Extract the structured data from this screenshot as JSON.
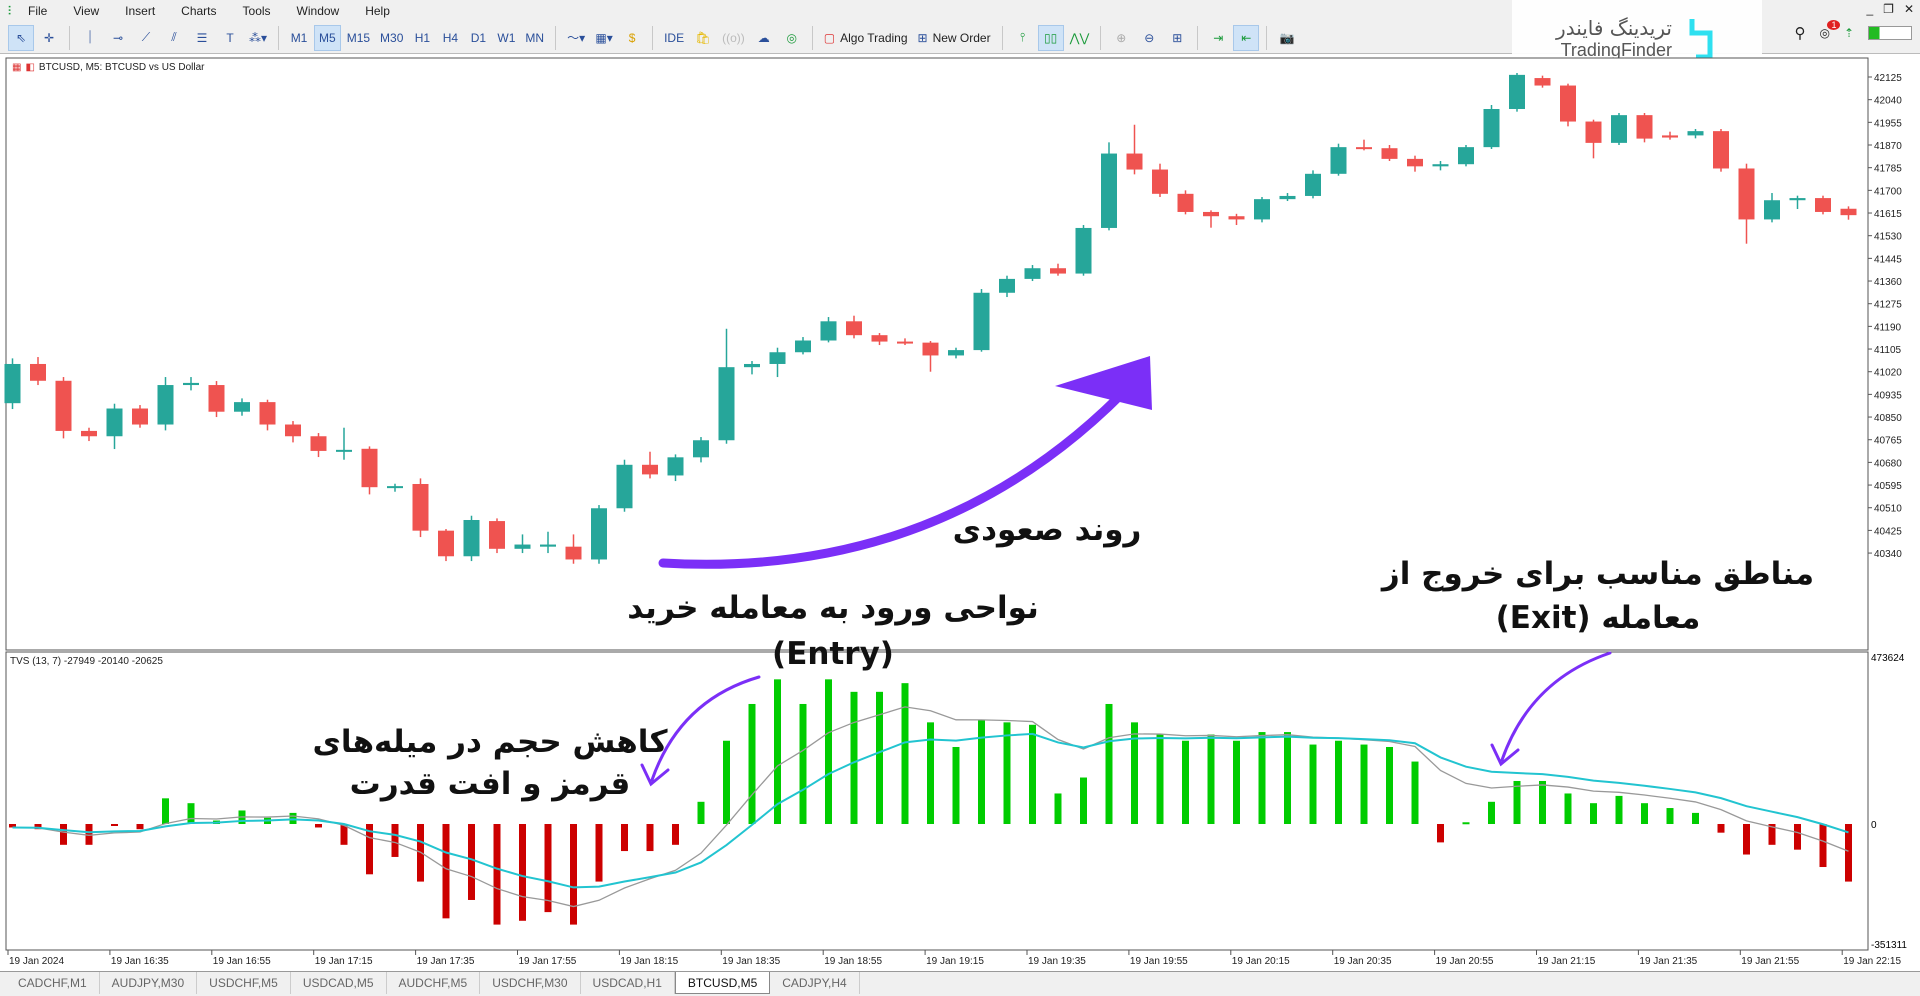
{
  "menu": [
    "File",
    "View",
    "Insert",
    "Charts",
    "Tools",
    "Window",
    "Help"
  ],
  "toolbar": {
    "timeframes": [
      "M1",
      "M5",
      "M15",
      "M30",
      "H1",
      "H4",
      "D1",
      "W1",
      "MN"
    ],
    "active_timeframe": "M5",
    "ide": "IDE",
    "algo_trading": "Algo Trading",
    "new_order": "New Order",
    "notification_count": "1"
  },
  "logo": {
    "fa": "تریدینگ فایندر",
    "en": "TradingFinder"
  },
  "chart": {
    "title": "BTCUSD, M5:  BTCUSD vs US Dollar",
    "price_ticks": [
      42125,
      42040,
      41955,
      41870,
      41785,
      41700,
      41615,
      41530,
      41445,
      41360,
      41275,
      41190,
      41105,
      41020,
      40935,
      40850,
      40765,
      40680,
      40595,
      40510,
      40425,
      40340
    ],
    "candles": [
      [
        40902,
        41049,
        41070,
        40880
      ],
      [
        41049,
        40986,
        41075,
        40970
      ],
      [
        40986,
        40798,
        41000,
        40770
      ],
      [
        40798,
        40778,
        40810,
        40760
      ],
      [
        40778,
        40882,
        40900,
        40730
      ],
      [
        40882,
        40822,
        40895,
        40810
      ],
      [
        40822,
        40970,
        41000,
        40800
      ],
      [
        40970,
        40978,
        41000,
        40950
      ],
      [
        40970,
        40870,
        40985,
        40850
      ],
      [
        40870,
        40906,
        40920,
        40855
      ],
      [
        40906,
        40822,
        40915,
        40800
      ],
      [
        40822,
        40778,
        40835,
        40755
      ],
      [
        40778,
        40723,
        40790,
        40700
      ],
      [
        40723,
        40727,
        40810,
        40690
      ],
      [
        40731,
        40587,
        40740,
        40560
      ],
      [
        40587,
        40591,
        40600,
        40570
      ],
      [
        40599,
        40424,
        40620,
        40400
      ],
      [
        40424,
        40328,
        40430,
        40310
      ],
      [
        40328,
        40464,
        40480,
        40310
      ],
      [
        40460,
        40356,
        40470,
        40340
      ],
      [
        40356,
        40372,
        40410,
        40340
      ],
      [
        40364,
        40372,
        40420,
        40340
      ],
      [
        40364,
        40316,
        40410,
        40300
      ],
      [
        40316,
        40508,
        40520,
        40300
      ],
      [
        40508,
        40671,
        40690,
        40495
      ],
      [
        40671,
        40635,
        40720,
        40620
      ],
      [
        40631,
        40699,
        40710,
        40610
      ],
      [
        40699,
        40763,
        40775,
        40680
      ],
      [
        40763,
        41037,
        41181,
        40750
      ],
      [
        41037,
        41049,
        41060,
        41010
      ],
      [
        41049,
        41093,
        41110,
        41000
      ],
      [
        41093,
        41137,
        41150,
        41085
      ],
      [
        41137,
        41209,
        41225,
        41130
      ],
      [
        41209,
        41157,
        41230,
        41145
      ],
      [
        41157,
        41133,
        41165,
        41120
      ],
      [
        41133,
        41129,
        41145,
        41120
      ],
      [
        41129,
        41081,
        41135,
        41020
      ],
      [
        41081,
        41101,
        41110,
        41070
      ],
      [
        41101,
        41316,
        41330,
        41095
      ],
      [
        41316,
        41368,
        41380,
        41300
      ],
      [
        41368,
        41408,
        41420,
        41360
      ],
      [
        41408,
        41388,
        41425,
        41380
      ],
      [
        41388,
        41559,
        41570,
        41380
      ],
      [
        41559,
        41838,
        41880,
        41550
      ],
      [
        41838,
        41778,
        41946,
        41760
      ],
      [
        41778,
        41687,
        41800,
        41675
      ],
      [
        41687,
        41619,
        41700,
        41610
      ],
      [
        41619,
        41603,
        41625,
        41560
      ],
      [
        41603,
        41591,
        41612,
        41570
      ],
      [
        41591,
        41667,
        41675,
        41580
      ],
      [
        41667,
        41679,
        41690,
        41660
      ],
      [
        41679,
        41762,
        41775,
        41670
      ],
      [
        41762,
        41862,
        41875,
        41755
      ],
      [
        41862,
        41858,
        41890,
        41850
      ],
      [
        41858,
        41818,
        41870,
        41810
      ],
      [
        41818,
        41790,
        41830,
        41770
      ],
      [
        41790,
        41798,
        41810,
        41775
      ],
      [
        41798,
        41862,
        41870,
        41790
      ],
      [
        41862,
        42005,
        42020,
        41855
      ],
      [
        42005,
        42133,
        42140,
        41995
      ],
      [
        42121,
        42093,
        42130,
        42085
      ],
      [
        42093,
        41958,
        42100,
        41940
      ],
      [
        41958,
        41878,
        41965,
        41820
      ],
      [
        41878,
        41982,
        41990,
        41870
      ],
      [
        41982,
        41894,
        41990,
        41880
      ],
      [
        41906,
        41898,
        41920,
        41890
      ],
      [
        41906,
        41922,
        41930,
        41895
      ],
      [
        41922,
        41782,
        41930,
        41770
      ],
      [
        41782,
        41591,
        41800,
        41500
      ],
      [
        41591,
        41663,
        41690,
        41580
      ],
      [
        41663,
        41671,
        41680,
        41630
      ],
      [
        41671,
        41619,
        41680,
        41610
      ],
      [
        41631,
        41607,
        41640,
        41590
      ]
    ],
    "colors": {
      "bull": "#26a69a",
      "bear": "#ef5350",
      "vol_up": "#00cc00",
      "vol_down": "#cc0000",
      "line_fast": "#999999",
      "line_slow": "#22c4d0",
      "arrow": "#7b2ff7"
    }
  },
  "indicator": {
    "label": "TVS (13, 7) -27949 -20140 -20625",
    "periods": [
      13,
      7
    ],
    "axis_top": "473624",
    "axis_zero": "0",
    "axis_bottom": "-351311",
    "volume": [
      -10000,
      -15000,
      -60000,
      -60000,
      -5000,
      -15000,
      74000,
      60000,
      10000,
      39000,
      18000,
      32000,
      -10000,
      -60000,
      -145000,
      -95000,
      -166000,
      -272000,
      -219000,
      -290000,
      -279000,
      -254000,
      -290000,
      -166000,
      -78000,
      -78000,
      -60000,
      64000,
      240000,
      346000,
      417000,
      346000,
      417000,
      381000,
      381000,
      406000,
      293000,
      222000,
      300000,
      293000,
      286000,
      88000,
      134000,
      346000,
      293000,
      258000,
      240000,
      258000,
      240000,
      265000,
      265000,
      229000,
      240000,
      229000,
      222000,
      180000,
      -53000,
      5000,
      64000,
      124000,
      124000,
      88000,
      60000,
      81000,
      60000,
      46000,
      32000,
      -25000,
      -88000,
      -60000,
      -74000,
      -124000,
      -166000
    ]
  },
  "time_labels": [
    "19 Jan 2024",
    "19 Jan 16:35",
    "19 Jan 16:55",
    "19 Jan 17:15",
    "19 Jan 17:35",
    "19 Jan 17:55",
    "19 Jan 18:15",
    "19 Jan 18:35",
    "19 Jan 18:55",
    "19 Jan 19:15",
    "19 Jan 19:35",
    "19 Jan 19:55",
    "19 Jan 20:15",
    "19 Jan 20:35",
    "19 Jan 20:55",
    "19 Jan 21:15",
    "19 Jan 21:35",
    "19 Jan 21:55",
    "19 Jan 22:15"
  ],
  "annotations": {
    "uptrend": "روند صعودی",
    "entry_line1": "نواحی ورود به معامله خرید",
    "entry_line2": "(Entry)",
    "exit_line1": "مناطق مناسب برای خروج از",
    "exit_line2": "معامله (Exit)",
    "volume_line1": "کاهش حجم در میله‌های",
    "volume_line2": "قرمز و افت قدرت"
  },
  "tabs": [
    "CADCHF,M1",
    "AUDJPY,M30",
    "USDCHF,M5",
    "USDCAD,M5",
    "AUDCHF,M5",
    "USDCHF,M30",
    "USDCAD,H1",
    "BTCUSD,M5",
    "CADJPY,H4"
  ],
  "active_tab": "BTCUSD,M5"
}
